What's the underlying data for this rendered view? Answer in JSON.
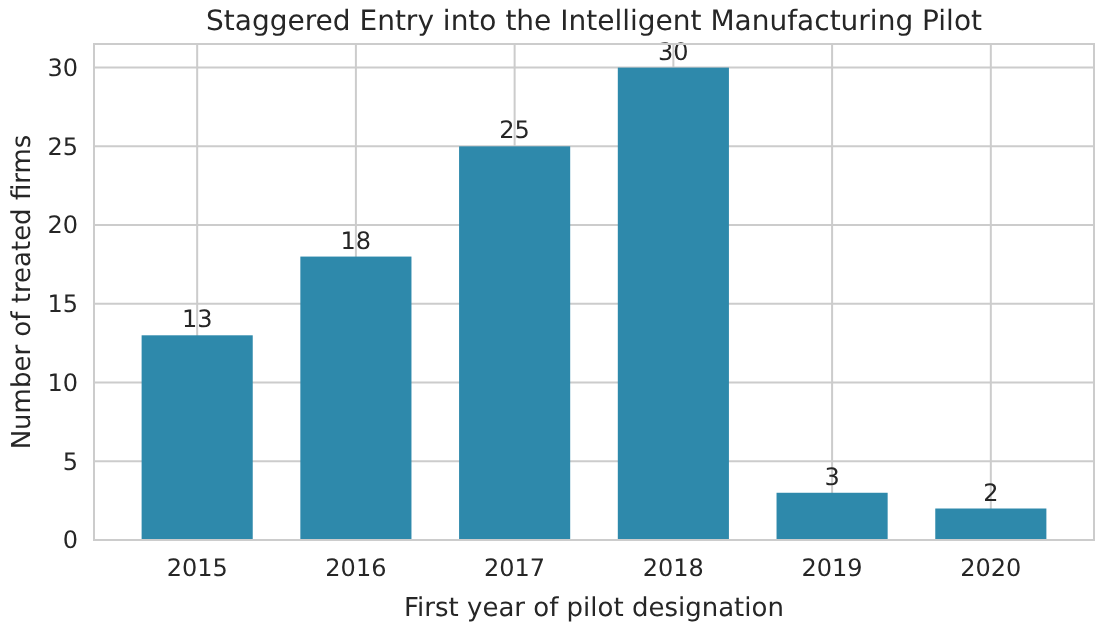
{
  "chart_data": {
    "type": "bar",
    "title": "Staggered Entry into the Intelligent Manufacturing Pilot",
    "xlabel": "First year of pilot designation",
    "ylabel": "Number of treated firms",
    "categories": [
      "2015",
      "2016",
      "2017",
      "2018",
      "2019",
      "2020"
    ],
    "values": [
      13,
      18,
      25,
      30,
      3,
      2
    ],
    "color": "#2e89ab",
    "ylim": [
      0,
      31.5
    ],
    "yticks": [
      0,
      5,
      10,
      15,
      20,
      25,
      30
    ],
    "grid": true,
    "data_labels": true
  }
}
